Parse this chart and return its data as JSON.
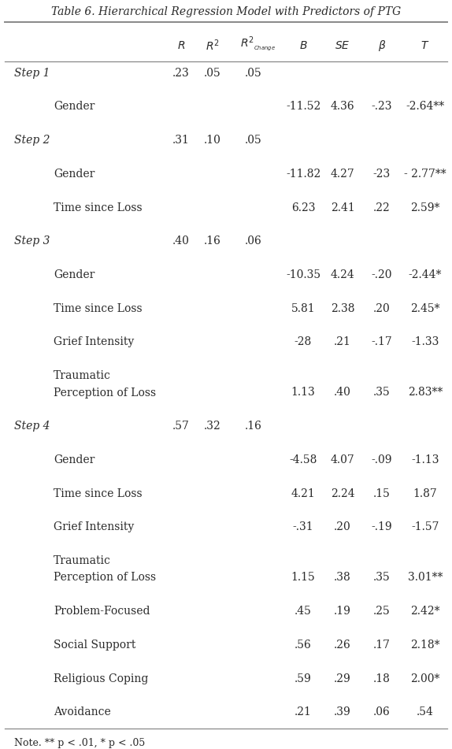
{
  "title": "Table 6. Hierarchical Regression Model with Predictors of PTG",
  "note": "Note. ** p < .01, * p < .05",
  "bg_color": "#ffffff",
  "text_color": "#2a2a2a",
  "line_color": "#888888",
  "font_size": 10.0,
  "rows": [
    {
      "type": "step",
      "label": "Step 1",
      "R": ".23",
      "R2": ".05",
      "R2c": ".05",
      "B": "",
      "SE": "",
      "beta": "",
      "T": ""
    },
    {
      "type": "blank"
    },
    {
      "type": "var",
      "label": "Gender",
      "B": "-11.52",
      "SE": "4.36",
      "beta": "-.23",
      "T": "-2.64**"
    },
    {
      "type": "blank"
    },
    {
      "type": "step",
      "label": "Step 2",
      "R": ".31",
      "R2": ".10",
      "R2c": ".05",
      "B": "",
      "SE": "",
      "beta": "",
      "T": ""
    },
    {
      "type": "blank"
    },
    {
      "type": "var",
      "label": "Gender",
      "B": "-11.82",
      "SE": "4.27",
      "beta": "-23",
      "T": "- 2.77**"
    },
    {
      "type": "blank"
    },
    {
      "type": "var",
      "label": "Time since Loss",
      "B": "6.23",
      "SE": "2.41",
      "beta": ".22",
      "T": "2.59*"
    },
    {
      "type": "blank"
    },
    {
      "type": "step",
      "label": "Step 3",
      "R": ".40",
      "R2": ".16",
      "R2c": ".06",
      "B": "",
      "SE": "",
      "beta": "",
      "T": ""
    },
    {
      "type": "blank"
    },
    {
      "type": "var",
      "label": "Gender",
      "B": "-10.35",
      "SE": "4.24",
      "beta": "-.20",
      "T": "-2.44*"
    },
    {
      "type": "blank"
    },
    {
      "type": "var",
      "label": "Time since Loss",
      "B": "5.81",
      "SE": "2.38",
      "beta": ".20",
      "T": "2.45*"
    },
    {
      "type": "blank"
    },
    {
      "type": "var",
      "label": "Grief Intensity",
      "B": "-28",
      "SE": ".21",
      "beta": "-.17",
      "T": "-1.33"
    },
    {
      "type": "blank"
    },
    {
      "type": "var",
      "label": "Traumatic",
      "B": "",
      "SE": "",
      "beta": "",
      "T": ""
    },
    {
      "type": "var",
      "label": "Perception of Loss",
      "B": "1.13",
      "SE": ".40",
      "beta": ".35",
      "T": "2.83**"
    },
    {
      "type": "blank"
    },
    {
      "type": "step",
      "label": "Step 4",
      "R": ".57",
      "R2": ".32",
      "R2c": ".16",
      "B": "",
      "SE": "",
      "beta": "",
      "T": ""
    },
    {
      "type": "blank"
    },
    {
      "type": "var",
      "label": "Gender",
      "B": "-4.58",
      "SE": "4.07",
      "beta": "-.09",
      "T": "-1.13"
    },
    {
      "type": "blank"
    },
    {
      "type": "var",
      "label": "Time since Loss",
      "B": "4.21",
      "SE": "2.24",
      "beta": ".15",
      "T": "1.87"
    },
    {
      "type": "blank"
    },
    {
      "type": "var",
      "label": "Grief Intensity",
      "B": "-.31",
      "SE": ".20",
      "beta": "-.19",
      "T": "-1.57"
    },
    {
      "type": "blank"
    },
    {
      "type": "var",
      "label": "Traumatic",
      "B": "",
      "SE": "",
      "beta": "",
      "T": ""
    },
    {
      "type": "var",
      "label": "Perception of Loss",
      "B": "1.15",
      "SE": ".38",
      "beta": ".35",
      "T": "3.01**"
    },
    {
      "type": "blank"
    },
    {
      "type": "var",
      "label": "Problem-Focused",
      "B": ".45",
      "SE": ".19",
      "beta": ".25",
      "T": "2.42*"
    },
    {
      "type": "blank"
    },
    {
      "type": "var",
      "label": "Social Support",
      "B": ".56",
      "SE": ".26",
      "beta": ".17",
      "T": "2.18*"
    },
    {
      "type": "blank"
    },
    {
      "type": "var",
      "label": "Religious Coping",
      "B": ".59",
      "SE": ".29",
      "beta": ".18",
      "T": "2.00*"
    },
    {
      "type": "blank"
    },
    {
      "type": "var",
      "label": "Avoidance",
      "B": ".21",
      "SE": ".39",
      "beta": ".06",
      "T": ".54"
    }
  ]
}
